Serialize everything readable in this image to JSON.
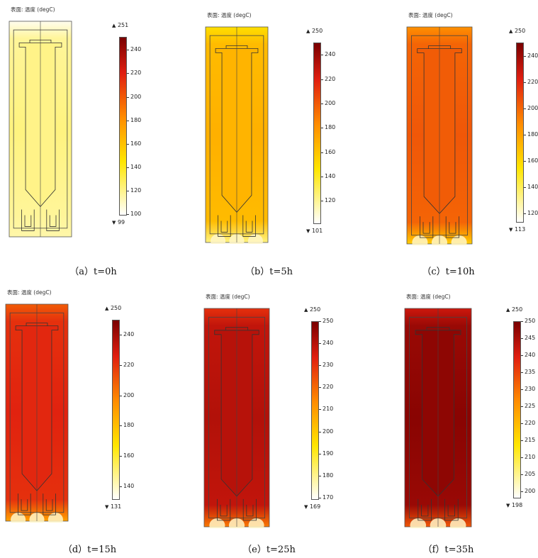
{
  "panels": [
    {
      "id": "a",
      "title": "表面: 温度 (degC)",
      "caption": "（a）t=0h",
      "max_label": "251",
      "min_label": "99",
      "ticks": [
        100,
        120,
        140,
        160,
        180,
        200,
        220,
        240
      ],
      "tick_min": 99,
      "tick_max": 251,
      "plate_level": 0.1,
      "bottom_hot": false
    },
    {
      "id": "b",
      "title": "表面: 温度 (degC)",
      "caption": "（b）t=5h",
      "max_label": "250",
      "min_label": "101",
      "ticks": [
        120,
        140,
        160,
        180,
        200,
        220,
        240
      ],
      "tick_min": 101,
      "tick_max": 250,
      "plate_level": 0.4,
      "bottom_hot": true
    },
    {
      "id": "c",
      "title": "表面: 温度 (degC)",
      "caption": "（c）t=10h",
      "max_label": "250",
      "min_label": "113",
      "ticks": [
        120,
        140,
        160,
        180,
        200,
        220,
        240
      ],
      "tick_min": 113,
      "tick_max": 250,
      "plate_level": 0.62,
      "bottom_hot": true
    },
    {
      "id": "d",
      "title": "表面: 温度 (degC)",
      "caption": "（d）t=15h",
      "max_label": "250",
      "min_label": "131",
      "ticks": [
        140,
        160,
        180,
        200,
        220,
        240
      ],
      "tick_min": 131,
      "tick_max": 250,
      "plate_level": 0.74,
      "bottom_hot": true
    },
    {
      "id": "e",
      "title": "表面: 温度 (degC)",
      "caption": "（e）t=25h",
      "max_label": "250",
      "min_label": "169",
      "ticks": [
        170,
        180,
        190,
        200,
        210,
        220,
        230,
        240,
        250
      ],
      "tick_min": 169,
      "tick_max": 250,
      "plate_level": 0.84,
      "bottom_hot": true
    },
    {
      "id": "f",
      "title": "表面: 温度 (degC)",
      "caption": "（f）t=35h",
      "max_label": "250",
      "min_label": "198",
      "ticks": [
        200,
        205,
        210,
        215,
        220,
        225,
        230,
        235,
        240,
        245,
        250
      ],
      "tick_min": 198,
      "tick_max": 250,
      "plate_level": 0.92,
      "bottom_hot": true
    }
  ],
  "colors": {
    "cold": "#ffffff",
    "warm": "#ffe600",
    "hot": "#ff8c00",
    "vhot": "#e01e10",
    "max": "#7a0000"
  }
}
